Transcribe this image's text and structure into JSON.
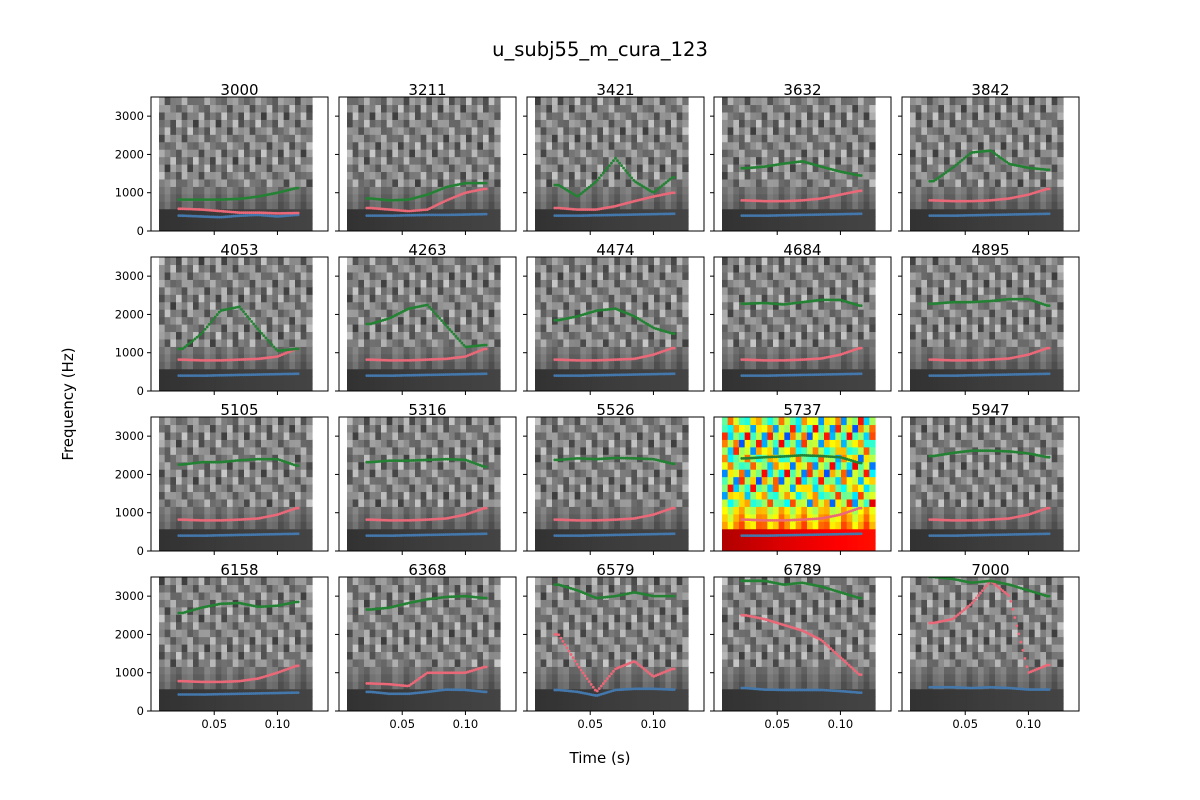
{
  "figure": {
    "title": "u_subj55_m_cura_123",
    "xlabel": "Time (s)",
    "ylabel": "Frequency (Hz)"
  },
  "colors": {
    "f1": "#4478ac",
    "f2": "#ea6878",
    "f3": "#238233"
  },
  "chart_data": {
    "type": "scatter",
    "layout": "grid 4x5, shared x and y axes",
    "xlim": [
      0,
      0.14
    ],
    "ylim": [
      0,
      3500
    ],
    "xticks": [
      0.05,
      0.1
    ],
    "xtick_labels": [
      "0.05",
      "0.10"
    ],
    "yticks": [
      0,
      1000,
      2000,
      3000
    ],
    "ytick_labels": [
      "0",
      "1000",
      "2000",
      "3000"
    ],
    "background": "spectrogram (grayscale; panel 5737 in jet colormap)",
    "highlighted_panel": "5737",
    "x": [
      0.025,
      0.04,
      0.055,
      0.07,
      0.085,
      0.1,
      0.115
    ],
    "panels": [
      {
        "title": "3000",
        "f1": [
          400,
          380,
          360,
          400,
          420,
          380,
          420
        ],
        "f2": [
          580,
          560,
          520,
          480,
          480,
          460,
          470
        ],
        "f3": [
          820,
          820,
          820,
          840,
          900,
          1000,
          1120
        ]
      },
      {
        "title": "3211",
        "f1": [
          400,
          400,
          410,
          420,
          420,
          430,
          440
        ],
        "f2": [
          600,
          560,
          520,
          560,
          800,
          1000,
          1100
        ],
        "f3": [
          850,
          800,
          820,
          950,
          1150,
          1250,
          1250
        ]
      },
      {
        "title": "3421",
        "f1": [
          400,
          400,
          410,
          420,
          430,
          440,
          450
        ],
        "f2": [
          600,
          560,
          560,
          650,
          780,
          900,
          1000
        ],
        "f3": [
          1200,
          900,
          1300,
          1900,
          1300,
          1000,
          1400
        ]
      },
      {
        "title": "3632",
        "f1": [
          400,
          400,
          410,
          420,
          430,
          440,
          450
        ],
        "f2": [
          800,
          780,
          780,
          800,
          850,
          950,
          1050
        ],
        "f3": [
          1640,
          1680,
          1760,
          1820,
          1680,
          1550,
          1450
        ]
      },
      {
        "title": "3842",
        "f1": [
          400,
          400,
          410,
          420,
          430,
          440,
          450
        ],
        "f2": [
          800,
          780,
          780,
          800,
          850,
          950,
          1100
        ],
        "f3": [
          1300,
          1650,
          2050,
          2100,
          1750,
          1650,
          1600
        ]
      },
      {
        "title": "4053",
        "f1": [
          400,
          400,
          410,
          420,
          430,
          440,
          450
        ],
        "f2": [
          820,
          800,
          800,
          820,
          840,
          900,
          1100
        ],
        "f3": [
          1100,
          1500,
          2100,
          2200,
          1600,
          1050,
          1100
        ]
      },
      {
        "title": "4263",
        "f1": [
          400,
          400,
          410,
          420,
          430,
          440,
          450
        ],
        "f2": [
          820,
          800,
          800,
          820,
          840,
          900,
          1100
        ],
        "f3": [
          1750,
          1900,
          2150,
          2250,
          1700,
          1150,
          1200
        ]
      },
      {
        "title": "4474",
        "f1": [
          400,
          400,
          410,
          420,
          430,
          440,
          450
        ],
        "f2": [
          820,
          800,
          800,
          820,
          840,
          950,
          1120
        ],
        "f3": [
          1850,
          1950,
          2100,
          2150,
          1950,
          1650,
          1500
        ]
      },
      {
        "title": "4684",
        "f1": [
          400,
          400,
          410,
          420,
          430,
          440,
          450
        ],
        "f2": [
          820,
          800,
          800,
          820,
          850,
          950,
          1120
        ],
        "f3": [
          2280,
          2300,
          2260,
          2320,
          2380,
          2380,
          2230
        ]
      },
      {
        "title": "4895",
        "f1": [
          400,
          400,
          410,
          420,
          430,
          440,
          450
        ],
        "f2": [
          820,
          800,
          800,
          820,
          850,
          950,
          1120
        ],
        "f3": [
          2280,
          2320,
          2320,
          2350,
          2400,
          2400,
          2230
        ]
      },
      {
        "title": "5105",
        "f1": [
          400,
          400,
          410,
          420,
          430,
          440,
          450
        ],
        "f2": [
          820,
          800,
          800,
          820,
          850,
          950,
          1120
        ],
        "f3": [
          2260,
          2320,
          2320,
          2370,
          2400,
          2400,
          2230
        ]
      },
      {
        "title": "5316",
        "f1": [
          400,
          400,
          410,
          420,
          430,
          440,
          450
        ],
        "f2": [
          820,
          800,
          800,
          820,
          850,
          950,
          1120
        ],
        "f3": [
          2320,
          2360,
          2360,
          2380,
          2400,
          2380,
          2200
        ]
      },
      {
        "title": "5526",
        "f1": [
          400,
          400,
          410,
          420,
          430,
          440,
          450
        ],
        "f2": [
          820,
          800,
          800,
          820,
          850,
          950,
          1120
        ],
        "f3": [
          2380,
          2420,
          2400,
          2430,
          2420,
          2400,
          2280
        ]
      },
      {
        "title": "5737",
        "f1": [
          400,
          400,
          410,
          420,
          430,
          440,
          450
        ],
        "f2": [
          820,
          800,
          800,
          820,
          850,
          950,
          1120
        ],
        "f3": [
          2420,
          2450,
          2470,
          2500,
          2480,
          2450,
          2300
        ]
      },
      {
        "title": "5947",
        "f1": [
          400,
          400,
          410,
          420,
          430,
          440,
          450
        ],
        "f2": [
          820,
          800,
          800,
          820,
          850,
          950,
          1120
        ],
        "f3": [
          2480,
          2560,
          2620,
          2620,
          2600,
          2550,
          2450
        ]
      },
      {
        "title": "6158",
        "f1": [
          430,
          430,
          440,
          450,
          460,
          470,
          480
        ],
        "f2": [
          780,
          760,
          760,
          780,
          850,
          1000,
          1180
        ],
        "f3": [
          2560,
          2700,
          2800,
          2820,
          2720,
          2750,
          2850
        ]
      },
      {
        "title": "6368",
        "f1": [
          500,
          450,
          450,
          500,
          560,
          550,
          500
        ],
        "f2": [
          720,
          700,
          650,
          1000,
          1000,
          1000,
          1150
        ],
        "f3": [
          2650,
          2700,
          2820,
          2920,
          2980,
          3000,
          2950
        ]
      },
      {
        "title": "6579",
        "f1": [
          550,
          500,
          400,
          550,
          580,
          580,
          560
        ],
        "f2": [
          2000,
          1200,
          500,
          1100,
          1300,
          900,
          1100
        ],
        "f3": [
          3300,
          3150,
          2950,
          3000,
          3100,
          3000,
          3000
        ]
      },
      {
        "title": "6789",
        "f1": [
          600,
          560,
          550,
          550,
          550,
          520,
          480
        ],
        "f2": [
          2500,
          2400,
          2250,
          2100,
          1850,
          1400,
          950
        ],
        "f3": [
          3400,
          3400,
          3300,
          3350,
          3250,
          3100,
          2950
        ]
      },
      {
        "title": "7000",
        "f1": [
          620,
          620,
          600,
          620,
          600,
          560,
          560
        ],
        "f2": [
          2300,
          2400,
          2800,
          3400,
          3000,
          1000,
          1200
        ],
        "f3": [
          3500,
          3450,
          3350,
          3400,
          3300,
          3150,
          3000
        ]
      }
    ]
  }
}
